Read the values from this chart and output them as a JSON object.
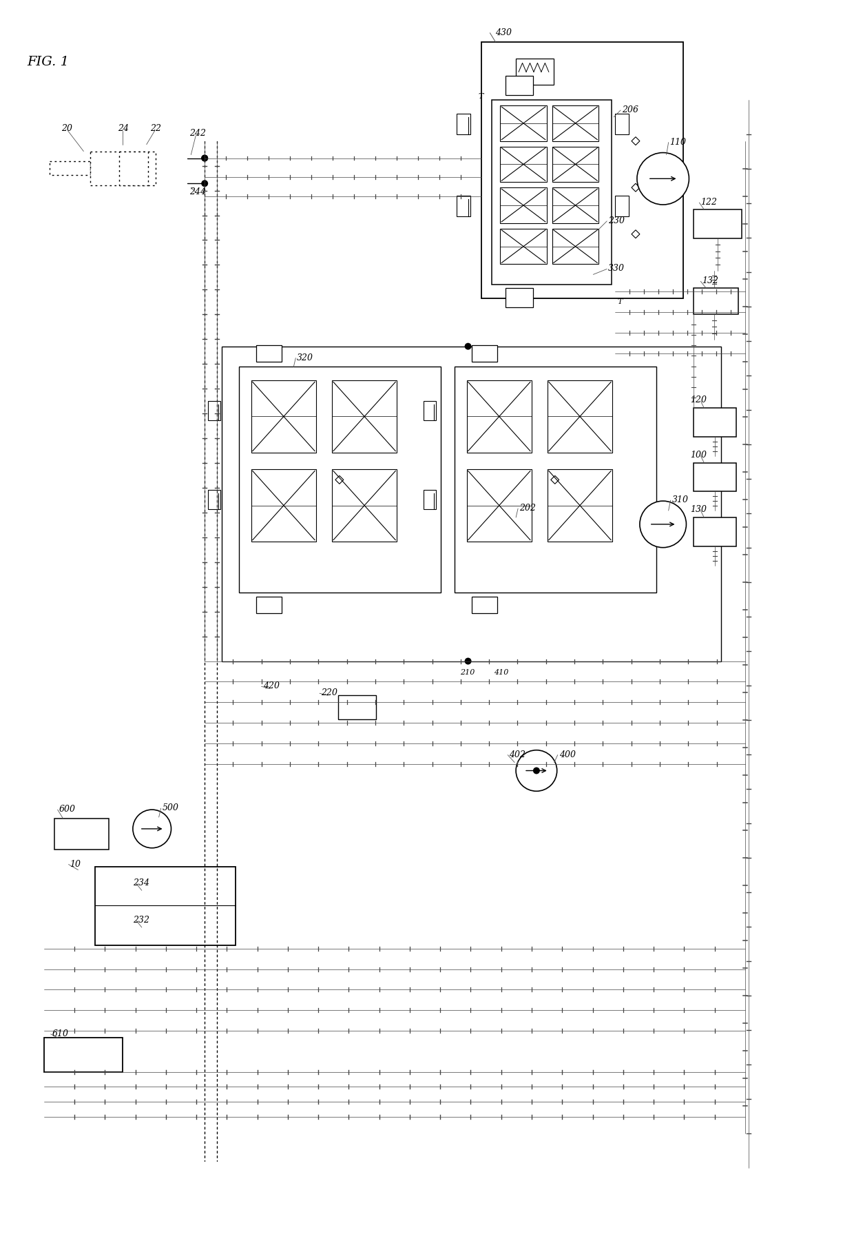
{
  "title": "FIG. 1",
  "bg_color": "#ffffff",
  "lc": "#000000",
  "fig_width": 12.4,
  "fig_height": 17.91,
  "dpi": 100
}
